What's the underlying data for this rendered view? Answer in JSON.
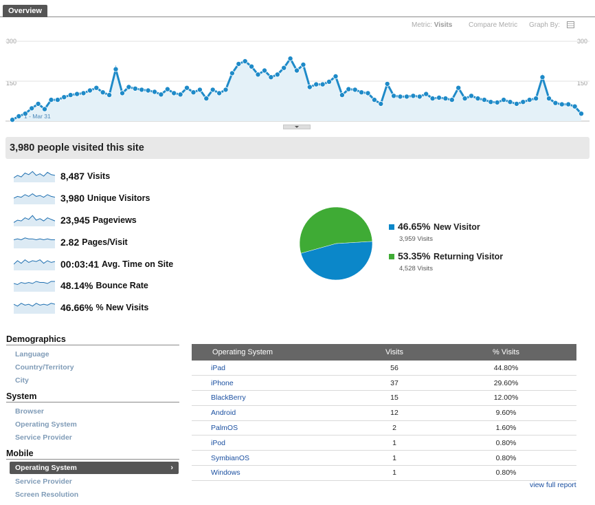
{
  "tabs": {
    "overview": "Overview"
  },
  "toolbar": {
    "metric_label": "Metric:",
    "metric_value": "Visits",
    "compare_label": "Compare Metric",
    "graph_by_label": "Graph By:",
    "graph_by_icon": "calendar-icon"
  },
  "chart_data": {
    "type": "area",
    "y_ticks": [
      "300",
      "150"
    ],
    "ylim": [
      0,
      300
    ],
    "annotation": "1 - Mar 31",
    "color": "#1e8ac8",
    "fill": "#e4f1f8",
    "values": [
      5,
      18,
      28,
      48,
      65,
      45,
      80,
      80,
      90,
      98,
      102,
      105,
      115,
      125,
      108,
      98,
      195,
      105,
      128,
      122,
      118,
      115,
      110,
      100,
      120,
      105,
      100,
      125,
      108,
      118,
      85,
      118,
      105,
      118,
      180,
      215,
      225,
      205,
      175,
      190,
      165,
      175,
      200,
      235,
      190,
      212,
      128,
      138,
      138,
      148,
      168,
      98,
      120,
      118,
      108,
      105,
      80,
      65,
      140,
      95,
      92,
      92,
      95,
      92,
      102,
      85,
      88,
      85,
      80,
      125,
      85,
      95,
      85,
      80,
      72,
      70,
      80,
      72,
      65,
      72,
      80,
      85,
      165,
      85,
      68,
      63,
      63,
      55,
      28
    ],
    "series": [
      {
        "name": "Visits"
      }
    ]
  },
  "summary": {
    "title": "3,980 people visited this site"
  },
  "stats": [
    {
      "value": "8,487",
      "label": "Visits",
      "spark": [
        6,
        9,
        7,
        12,
        10,
        14,
        9,
        11,
        8,
        13,
        10,
        9
      ]
    },
    {
      "value": "3,980",
      "label": "Unique Visitors",
      "spark": [
        7,
        9,
        8,
        11,
        9,
        12,
        9,
        10,
        8,
        11,
        9,
        8
      ]
    },
    {
      "value": "23,945",
      "label": "Pageviews",
      "spark": [
        5,
        8,
        7,
        11,
        9,
        14,
        8,
        10,
        7,
        11,
        9,
        7
      ]
    },
    {
      "value": "2.82",
      "label": "Pages/Visit",
      "spark": [
        9,
        10,
        9,
        11,
        10,
        10,
        9,
        10,
        9,
        10,
        9,
        9
      ]
    },
    {
      "value": "00:03:41",
      "label": "Avg. Time on Site",
      "spark": [
        7,
        11,
        8,
        12,
        9,
        11,
        10,
        12,
        8,
        11,
        9,
        10
      ]
    },
    {
      "value": "48.14%",
      "label": "Bounce Rate",
      "spark": [
        8,
        7,
        9,
        8,
        9,
        8,
        10,
        9,
        9,
        8,
        10,
        10
      ]
    },
    {
      "value": "46.66%",
      "label": "% New Visits",
      "spark": [
        10,
        8,
        11,
        9,
        10,
        8,
        11,
        9,
        10,
        9,
        11,
        10
      ]
    }
  ],
  "pie": {
    "slices": [
      {
        "pct": "46.65%",
        "name": "New Visitor",
        "sub": "3,959 Visits",
        "value": 46.65,
        "color": "#0b87c9"
      },
      {
        "pct": "53.35%",
        "name": "Returning Visitor",
        "sub": "4,528 Visits",
        "value": 53.35,
        "color": "#3fab35"
      }
    ]
  },
  "sidebar": {
    "demographics": {
      "title": "Demographics",
      "links": [
        "Language",
        "Country/Territory",
        "City"
      ]
    },
    "system": {
      "title": "System",
      "links": [
        "Browser",
        "Operating System",
        "Service Provider"
      ]
    },
    "mobile": {
      "title": "Mobile",
      "selected": "Operating System",
      "links": [
        "Service Provider",
        "Screen Resolution"
      ]
    }
  },
  "table": {
    "headers": [
      "Operating System",
      "Visits",
      "% Visits"
    ],
    "rows": [
      [
        "iPad",
        "56",
        "44.80%"
      ],
      [
        "iPhone",
        "37",
        "29.60%"
      ],
      [
        "BlackBerry",
        "15",
        "12.00%"
      ],
      [
        "Android",
        "12",
        "9.60%"
      ],
      [
        "PalmOS",
        "2",
        "1.60%"
      ],
      [
        "iPod",
        "1",
        "0.80%"
      ],
      [
        "SymbianOS",
        "1",
        "0.80%"
      ],
      [
        "Windows",
        "1",
        "0.80%"
      ]
    ],
    "full_report": "view full report"
  }
}
